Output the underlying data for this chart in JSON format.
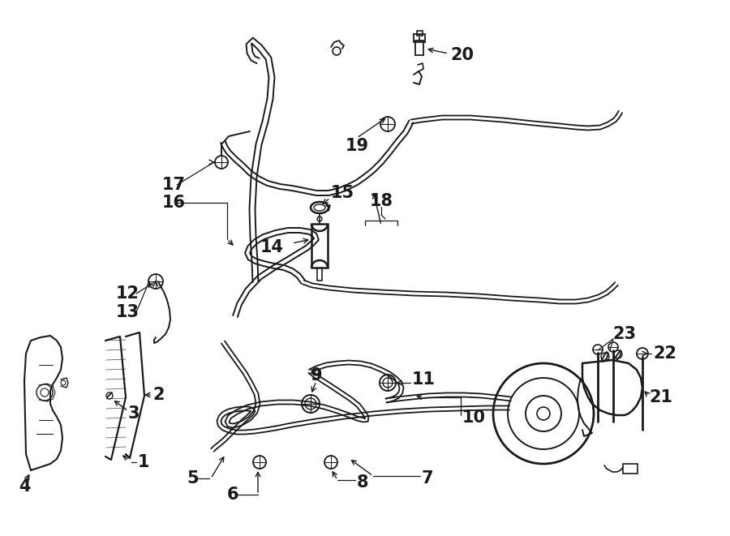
{
  "bg_color": "#ffffff",
  "line_color": "#1a1a1a",
  "figsize": [
    9.0,
    6.61
  ],
  "dpi": 100,
  "font_size": 14
}
